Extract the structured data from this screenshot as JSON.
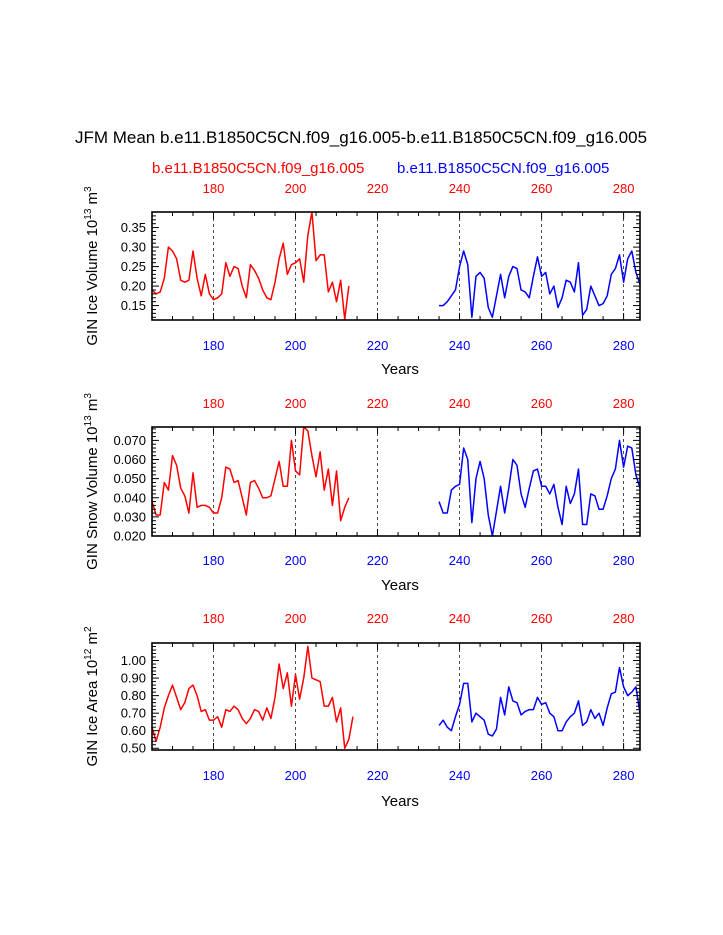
{
  "title": "JFM Mean b.e11.B1850C5CN.f09_g16.005-b.e11.B1850C5CN.f09_g16.005",
  "legend": {
    "left": {
      "text": "b.e11.B1850C5CN.f09_g16.005",
      "color": "#ff0000"
    },
    "right": {
      "text": "b.e11.B1850C5CN.f09_g16.005",
      "color": "#0000ff"
    }
  },
  "colors": {
    "red": "#ff0000",
    "blue": "#0000ff",
    "axis": "#000000",
    "grid": "#000000"
  },
  "chart_data": [
    {
      "type": "line",
      "ylabel": "GIN Ice Volume 10",
      "ylabel_exp": "13",
      "ylabel_unit": " m",
      "ylabel_unit_exp": "3",
      "xlabel": "Years",
      "xlim": [
        165,
        284
      ],
      "ylim": [
        0.113,
        0.39
      ],
      "yticks": [
        0.15,
        0.2,
        0.25,
        0.3,
        0.35
      ],
      "ytick_labels": [
        "0.15",
        "0.20",
        "0.25",
        "0.30",
        "0.35"
      ],
      "xticks": [
        180,
        200,
        220,
        240,
        260,
        280
      ],
      "xtick_labels_top": [
        "180",
        "200",
        "220",
        "240",
        "260",
        "280"
      ],
      "xtick_labels_bottom": [
        "180",
        "200",
        "220",
        "240",
        "260",
        "280"
      ],
      "series": [
        {
          "name": "red",
          "x_start": 165,
          "values": [
            0.19,
            0.18,
            0.185,
            0.22,
            0.3,
            0.29,
            0.27,
            0.215,
            0.21,
            0.215,
            0.29,
            0.22,
            0.175,
            0.23,
            0.18,
            0.165,
            0.17,
            0.18,
            0.26,
            0.225,
            0.25,
            0.245,
            0.2,
            0.17,
            0.255,
            0.24,
            0.22,
            0.19,
            0.17,
            0.165,
            0.21,
            0.27,
            0.31,
            0.23,
            0.255,
            0.26,
            0.27,
            0.21,
            0.33,
            0.39,
            0.265,
            0.28,
            0.28,
            0.185,
            0.21,
            0.16,
            0.215,
            0.115,
            0.2
          ]
        },
        {
          "name": "blue",
          "x_start": 235,
          "values": [
            0.15,
            0.15,
            0.16,
            0.175,
            0.19,
            0.25,
            0.29,
            0.255,
            0.12,
            0.225,
            0.235,
            0.22,
            0.145,
            0.12,
            0.175,
            0.23,
            0.17,
            0.225,
            0.25,
            0.245,
            0.19,
            0.185,
            0.17,
            0.225,
            0.275,
            0.225,
            0.235,
            0.18,
            0.2,
            0.145,
            0.17,
            0.215,
            0.21,
            0.185,
            0.26,
            0.125,
            0.14,
            0.2,
            0.175,
            0.15,
            0.155,
            0.175,
            0.23,
            0.245,
            0.28,
            0.21,
            0.27,
            0.29,
            0.235,
            0.205
          ]
        }
      ]
    },
    {
      "type": "line",
      "ylabel": "GIN Snow Volume 10",
      "ylabel_exp": "13",
      "ylabel_unit": " m",
      "ylabel_unit_exp": "3",
      "xlabel": "Years",
      "xlim": [
        165,
        284
      ],
      "ylim": [
        0.02,
        0.077
      ],
      "yticks": [
        0.02,
        0.03,
        0.04,
        0.05,
        0.06,
        0.07
      ],
      "ytick_labels": [
        "0.020",
        "0.030",
        "0.040",
        "0.050",
        "0.060",
        "0.070"
      ],
      "xticks": [
        180,
        200,
        220,
        240,
        260,
        280
      ],
      "xtick_labels_top": [
        "180",
        "200",
        "220",
        "240",
        "260",
        "280"
      ],
      "xtick_labels_bottom": [
        "180",
        "200",
        "220",
        "240",
        "260",
        "280"
      ],
      "series": [
        {
          "name": "red",
          "x_start": 165,
          "values": [
            0.038,
            0.031,
            0.031,
            0.048,
            0.044,
            0.062,
            0.057,
            0.045,
            0.041,
            0.032,
            0.053,
            0.035,
            0.036,
            0.036,
            0.035,
            0.032,
            0.032,
            0.04,
            0.056,
            0.055,
            0.048,
            0.049,
            0.04,
            0.031,
            0.048,
            0.049,
            0.045,
            0.04,
            0.04,
            0.041,
            0.05,
            0.059,
            0.046,
            0.046,
            0.07,
            0.054,
            0.052,
            0.077,
            0.075,
            0.062,
            0.051,
            0.064,
            0.044,
            0.055,
            0.036,
            0.054,
            0.028,
            0.035,
            0.04
          ]
        },
        {
          "name": "blue",
          "x_start": 235,
          "values": [
            0.038,
            0.032,
            0.032,
            0.044,
            0.046,
            0.047,
            0.066,
            0.06,
            0.027,
            0.05,
            0.059,
            0.05,
            0.031,
            0.02,
            0.033,
            0.046,
            0.032,
            0.045,
            0.06,
            0.057,
            0.042,
            0.035,
            0.045,
            0.054,
            0.055,
            0.046,
            0.046,
            0.042,
            0.047,
            0.035,
            0.026,
            0.046,
            0.037,
            0.042,
            0.055,
            0.026,
            0.026,
            0.042,
            0.041,
            0.034,
            0.034,
            0.041,
            0.05,
            0.055,
            0.07,
            0.056,
            0.067,
            0.066,
            0.052,
            0.045
          ]
        }
      ]
    },
    {
      "type": "line",
      "ylabel": "GIN Ice Area 10",
      "ylabel_exp": "12",
      "ylabel_unit": " m",
      "ylabel_unit_exp": "2",
      "xlabel": "Years",
      "xlim": [
        165,
        284
      ],
      "ylim": [
        0.49,
        1.1
      ],
      "yticks": [
        0.5,
        0.6,
        0.7,
        0.8,
        0.9,
        1.0
      ],
      "ytick_labels": [
        "0.50",
        "0.60",
        "0.70",
        "0.80",
        "0.90",
        "1.00"
      ],
      "xticks": [
        180,
        200,
        220,
        240,
        260,
        280
      ],
      "xtick_labels_top": [
        "180",
        "200",
        "220",
        "240",
        "260",
        "280"
      ],
      "xtick_labels_bottom": [
        "180",
        "200",
        "220",
        "240",
        "260",
        "280"
      ],
      "series": [
        {
          "name": "red",
          "x_start": 165,
          "values": [
            0.62,
            0.54,
            0.62,
            0.73,
            0.8,
            0.86,
            0.79,
            0.72,
            0.76,
            0.84,
            0.86,
            0.8,
            0.71,
            0.72,
            0.66,
            0.66,
            0.68,
            0.62,
            0.72,
            0.71,
            0.74,
            0.72,
            0.67,
            0.64,
            0.67,
            0.72,
            0.71,
            0.66,
            0.73,
            0.67,
            0.79,
            0.98,
            0.84,
            0.93,
            0.74,
            0.92,
            0.78,
            0.9,
            1.08,
            0.9,
            0.89,
            0.88,
            0.74,
            0.74,
            0.79,
            0.65,
            0.73,
            0.5,
            0.55,
            0.68
          ]
        },
        {
          "name": "blue",
          "x_start": 235,
          "values": [
            0.63,
            0.66,
            0.62,
            0.6,
            0.68,
            0.75,
            0.87,
            0.87,
            0.65,
            0.7,
            0.68,
            0.66,
            0.58,
            0.57,
            0.61,
            0.79,
            0.69,
            0.85,
            0.77,
            0.76,
            0.69,
            0.71,
            0.72,
            0.72,
            0.79,
            0.75,
            0.76,
            0.7,
            0.68,
            0.6,
            0.6,
            0.65,
            0.68,
            0.7,
            0.77,
            0.63,
            0.65,
            0.72,
            0.67,
            0.7,
            0.63,
            0.73,
            0.81,
            0.82,
            0.96,
            0.85,
            0.8,
            0.82,
            0.85,
            0.7
          ]
        }
      ]
    }
  ]
}
